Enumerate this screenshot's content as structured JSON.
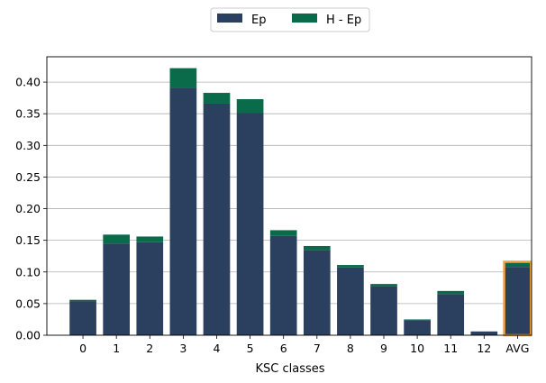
{
  "chart_data": {
    "type": "bar",
    "stacked": true,
    "xlabel": "KSC classes",
    "ylabel": "",
    "ylim": [
      0,
      0.44
    ],
    "yticks": [
      "0.00",
      "0.05",
      "0.10",
      "0.15",
      "0.20",
      "0.25",
      "0.30",
      "0.35",
      "0.40"
    ],
    "grid": "horizontal",
    "legend_position": "top-center",
    "categories": [
      "0",
      "1",
      "2",
      "3",
      "4",
      "5",
      "6",
      "7",
      "8",
      "9",
      "10",
      "11",
      "12",
      "AVG"
    ],
    "series": [
      {
        "name": "Ep",
        "color": "#2b3f5f",
        "values": [
          0.054,
          0.145,
          0.147,
          0.391,
          0.366,
          0.351,
          0.157,
          0.134,
          0.107,
          0.077,
          0.024,
          0.065,
          0.006,
          0.108
        ]
      },
      {
        "name": "H - Ep",
        "color": "#0a6b4b",
        "values": [
          0.002,
          0.014,
          0.009,
          0.031,
          0.017,
          0.022,
          0.009,
          0.007,
          0.004,
          0.004,
          0.001,
          0.005,
          0.0,
          0.008
        ]
      }
    ],
    "highlight": {
      "category": "AVG",
      "color": "#f0a040"
    }
  }
}
